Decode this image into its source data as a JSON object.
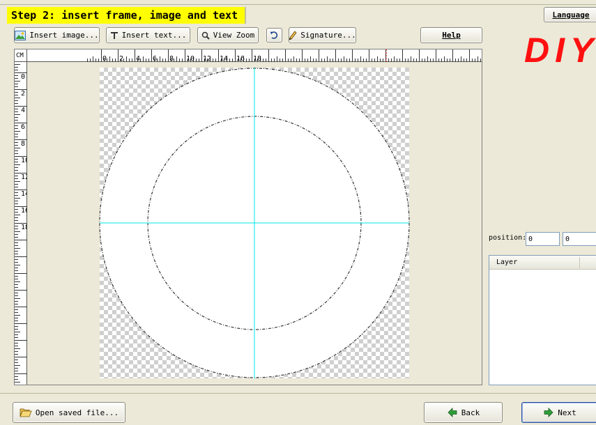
{
  "header": {
    "step_title": "Step 2: insert frame, image and text"
  },
  "language_label": "Language",
  "toolbar": {
    "insert_image": "Insert image...",
    "insert_text": "Insert text...",
    "view_zoom": "View Zoom",
    "undo_icon": "undo-icon",
    "signature": "Signature...",
    "help": "Help"
  },
  "logo_text": "DIY",
  "ruler": {
    "unit": "CM",
    "h_ticks": [
      "0",
      "2",
      "4",
      "6",
      "8",
      "10",
      "12",
      "14",
      "16",
      "18"
    ],
    "v_ticks": [
      "0",
      "2",
      "4",
      "6",
      "8",
      "10",
      "12",
      "14",
      "16",
      "18"
    ]
  },
  "position": {
    "label": "position:",
    "x": "0",
    "y": "0"
  },
  "layers": {
    "header": "Layer",
    "items": []
  },
  "footer": {
    "open_saved_file": "Open saved file...",
    "back": "Back",
    "next": "Next"
  },
  "colors": {
    "title_bg": "#ffff00",
    "guide": "#00e5e5",
    "logo": "#ff1010",
    "window_bg": "#ece9d8"
  }
}
